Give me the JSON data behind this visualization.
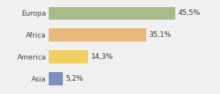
{
  "categories": [
    "Europa",
    "Africa",
    "America",
    "Asia"
  ],
  "values": [
    45.5,
    35.1,
    14.3,
    5.2
  ],
  "labels": [
    "45,5%",
    "35,1%",
    "14,3%",
    "5,2%"
  ],
  "bar_colors": [
    "#a8bc8a",
    "#e8b87a",
    "#f0d060",
    "#7b8fc0"
  ],
  "xlim": [
    0,
    60
  ],
  "background_color": "#f0f0f0",
  "bar_height": 0.6,
  "label_fontsize": 6.5,
  "tick_fontsize": 6.5
}
